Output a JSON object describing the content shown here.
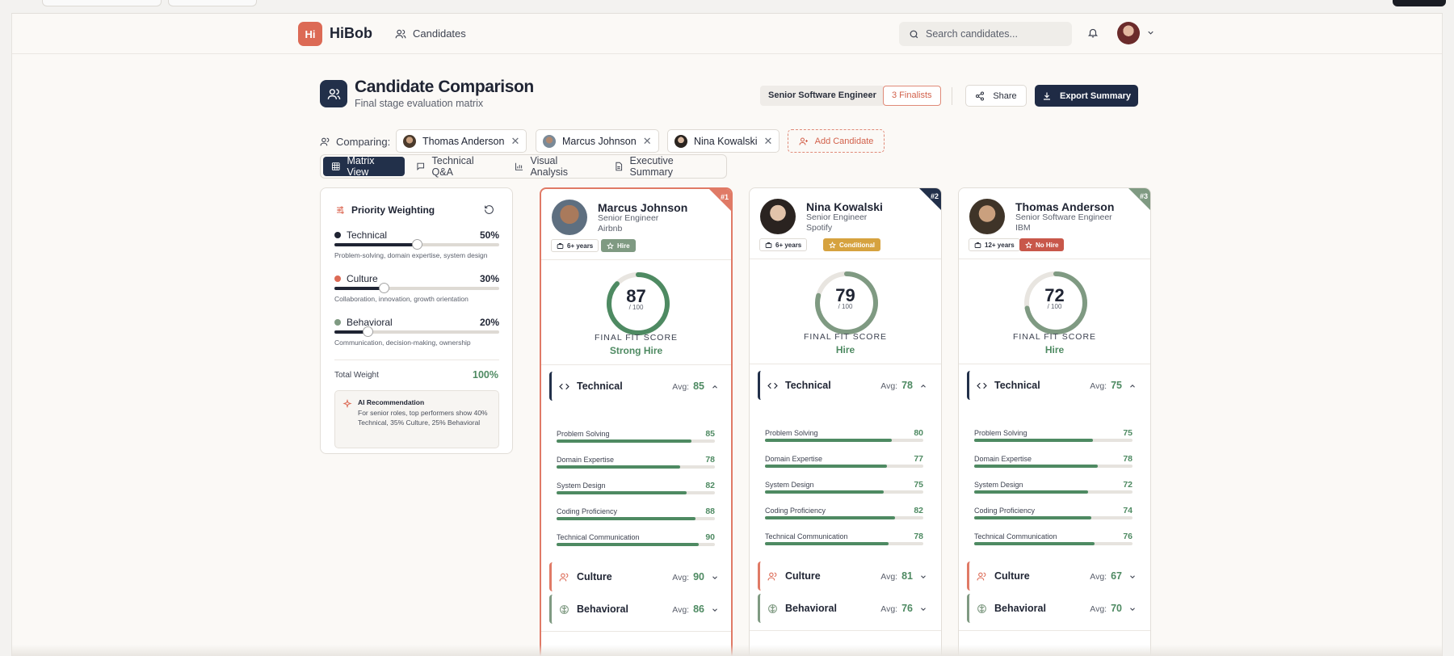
{
  "app": {
    "logo_text": "Hi",
    "brand": "HiBob",
    "nav_candidates": "Candidates",
    "search_placeholder": "Search candidates..."
  },
  "page": {
    "title": "Candidate Comparison",
    "subtitle": "Final stage evaluation matrix",
    "role_badge": "Senior Software Engineer",
    "finalists_badge": "3 Finalists",
    "share_label": "Share",
    "export_label": "Export Summary"
  },
  "comparing": {
    "label": "Comparing:",
    "chips": [
      "Thomas Anderson",
      "Marcus Johnson",
      "Nina Kowalski"
    ],
    "add_label": "Add Candidate"
  },
  "tabs": [
    "Matrix View",
    "Technical Q&A",
    "Visual Analysis",
    "Executive Summary"
  ],
  "weighting": {
    "title": "Priority Weighting",
    "rows": [
      {
        "name": "Technical",
        "pct": "50%",
        "value": 0.5,
        "color": "#1f2433",
        "desc": "Problem-solving, domain expertise, system design"
      },
      {
        "name": "Culture",
        "pct": "30%",
        "value": 0.3,
        "color": "#dc6a55",
        "desc": "Collaboration, innovation, growth orientation"
      },
      {
        "name": "Behavioral",
        "pct": "20%",
        "value": 0.2,
        "color": "#7f9a82",
        "desc": "Communication, decision-making, ownership"
      }
    ],
    "total_label": "Total Weight",
    "total_value": "100%",
    "ai_title": "AI Recommendation",
    "ai_body": "For senior roles, top performers show 40% Technical, 35% Culture, 25% Behavioral"
  },
  "labels": {
    "final_fit": "FINAL FIT SCORE",
    "out_of": "/ 100",
    "avg": "Avg:"
  },
  "candidates": [
    {
      "rank": "#1",
      "name": "Marcus Johnson",
      "role": "Senior Engineer",
      "company": "Airbnb",
      "years": "6+ years",
      "verdict": "Hire",
      "verdict_color": "#7f9a82",
      "score": 87,
      "score_text": "87",
      "recommendation": "Strong Hire",
      "ring_color": "#4e8a62",
      "rank_color": "#e07a66",
      "technical": {
        "label": "Technical",
        "avg": "85",
        "subs": [
          {
            "label": "Problem Solving",
            "value": "85",
            "pct": 85
          },
          {
            "label": "Domain Expertise",
            "value": "78",
            "pct": 78
          },
          {
            "label": "System Design",
            "value": "82",
            "pct": 82
          },
          {
            "label": "Coding Proficiency",
            "value": "88",
            "pct": 88
          },
          {
            "label": "Technical Communication",
            "value": "90",
            "pct": 90
          }
        ]
      },
      "culture": {
        "label": "Culture",
        "avg": "90"
      },
      "behavioral": {
        "label": "Behavioral",
        "avg": "86"
      }
    },
    {
      "rank": "#2",
      "name": "Nina Kowalski",
      "role": "Senior Engineer",
      "company": "Spotify",
      "years": "6+ years",
      "verdict": "Conditional",
      "verdict_color": "#d6a23f",
      "score": 79,
      "score_text": "79",
      "recommendation": "Hire",
      "ring_color": "#7f9a82",
      "rank_color": "#22304a",
      "technical": {
        "label": "Technical",
        "avg": "78",
        "subs": [
          {
            "label": "Problem Solving",
            "value": "80",
            "pct": 80
          },
          {
            "label": "Domain Expertise",
            "value": "77",
            "pct": 77
          },
          {
            "label": "System Design",
            "value": "75",
            "pct": 75
          },
          {
            "label": "Coding Proficiency",
            "value": "82",
            "pct": 82
          },
          {
            "label": "Technical Communication",
            "value": "78",
            "pct": 78
          }
        ]
      },
      "culture": {
        "label": "Culture",
        "avg": "81"
      },
      "behavioral": {
        "label": "Behavioral",
        "avg": "76"
      }
    },
    {
      "rank": "#3",
      "name": "Thomas Anderson",
      "role": "Senior Software Engineer",
      "company": "IBM",
      "years": "12+ years",
      "verdict": "No Hire",
      "verdict_color": "#c8574a",
      "score": 72,
      "score_text": "72",
      "recommendation": "Hire",
      "ring_color": "#7f9a82",
      "rank_color": "#7f9a82",
      "technical": {
        "label": "Technical",
        "avg": "75",
        "subs": [
          {
            "label": "Problem Solving",
            "value": "75",
            "pct": 75
          },
          {
            "label": "Domain Expertise",
            "value": "78",
            "pct": 78
          },
          {
            "label": "System Design",
            "value": "72",
            "pct": 72
          },
          {
            "label": "Coding Proficiency",
            "value": "74",
            "pct": 74
          },
          {
            "label": "Technical Communication",
            "value": "76",
            "pct": 76
          }
        ]
      },
      "culture": {
        "label": "Culture",
        "avg": "67"
      },
      "behavioral": {
        "label": "Behavioral",
        "avg": "70"
      }
    }
  ]
}
